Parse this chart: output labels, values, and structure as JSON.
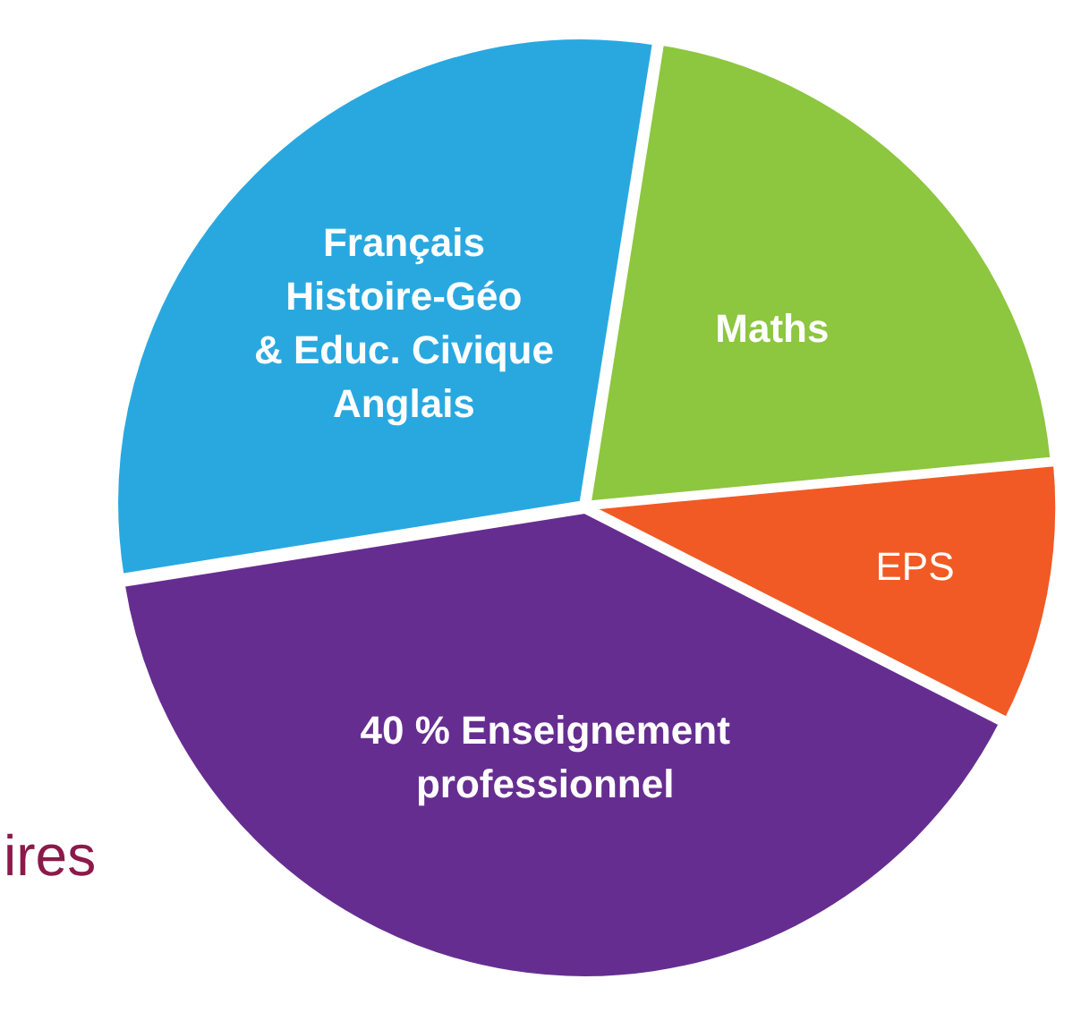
{
  "chart_data": {
    "type": "pie",
    "categories": [
      "Maths",
      "EPS",
      "40 % Enseignement\nprofessionnel",
      "Français\nHistoire-Géo\n& Educ. Civique\nAnglais"
    ],
    "values": [
      21,
      9,
      40,
      30
    ],
    "colors": [
      "#8dc63f",
      "#f15a24",
      "#662d91",
      "#29a8e0"
    ],
    "legend": false,
    "annotations": [
      "ires"
    ]
  }
}
